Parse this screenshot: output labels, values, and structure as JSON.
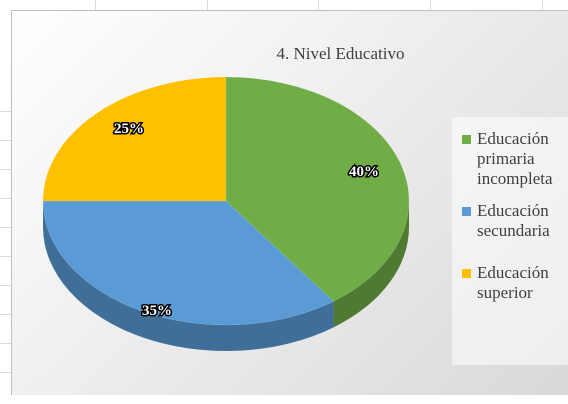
{
  "chart_data": {
    "type": "pie",
    "title": "4. Nivel Educativo",
    "categories": [
      "Educación primaria incompleta",
      "Educación secundaria",
      "Educación superior"
    ],
    "values": [
      40,
      35,
      25
    ],
    "data_labels": [
      "40%",
      "35%",
      "25%"
    ],
    "colors": [
      "#70ad47",
      "#5b9bd5",
      "#ffc000"
    ],
    "side_colors": [
      "#4f7a32",
      "#3f6f99",
      "#b38700"
    ],
    "legend_position": "right",
    "style": "3d-pie"
  },
  "legend": {
    "items": [
      {
        "label": "Educación primaria incompleta",
        "color": "#70ad47"
      },
      {
        "label": "Educación secundaria",
        "color": "#5b9bd5"
      },
      {
        "label": "Educación superior",
        "color": "#ffc000"
      }
    ]
  }
}
